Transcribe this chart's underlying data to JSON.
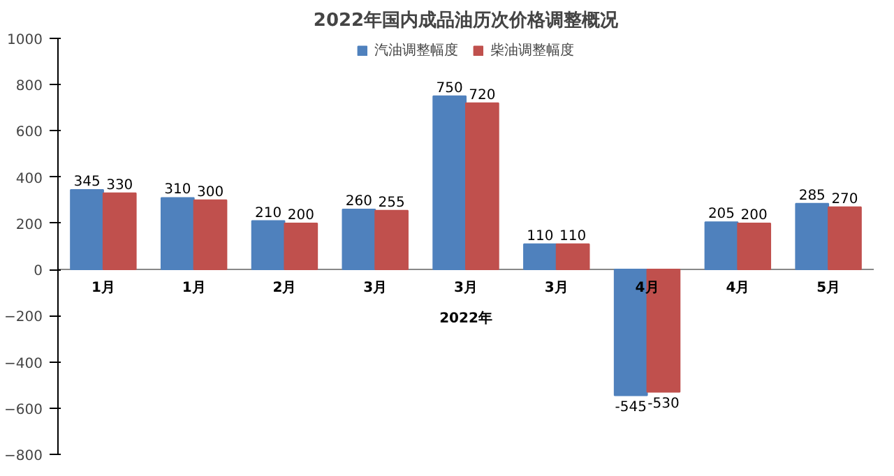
{
  "chart_data": {
    "type": "bar",
    "title": "2022年国内成品油历次价格调整概况",
    "xlabel": "2022年",
    "categories": [
      "1月",
      "1月",
      "2月",
      "3月",
      "3月",
      "3月",
      "4月",
      "4月",
      "5月"
    ],
    "series": [
      {
        "name": "汽油调整幅度",
        "color": "#4f81bd",
        "values": [
          345,
          310,
          210,
          260,
          750,
          110,
          -545,
          205,
          285
        ]
      },
      {
        "name": "柴油调整幅度",
        "color": "#c0504d",
        "values": [
          330,
          300,
          200,
          255,
          720,
          110,
          -530,
          200,
          270
        ]
      }
    ],
    "ylim": [
      -800,
      1000
    ],
    "yticks": [
      -800,
      -600,
      -400,
      -200,
      0,
      200,
      400,
      600,
      800,
      1000
    ],
    "data_labels": true,
    "legend": "top",
    "grid": false
  }
}
